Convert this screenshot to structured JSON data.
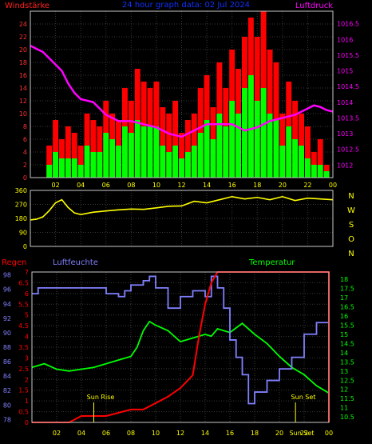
{
  "colors": {
    "background": "#000000",
    "wind_gust": "#ff0000",
    "wind_mean": "#00ff00",
    "pressure": "#ff00ff",
    "direction": "#ffff00",
    "rain": "#ff0000",
    "humidity": "#8080ff",
    "temperature": "#00ff00",
    "tick_left": "#ff3030",
    "tick_right_pressure": "#ff00ff",
    "tick_direction": "#ffff00",
    "tick_humidity": "#8080ff",
    "tick_temperature": "#00ff00",
    "tick_x": "#ffff00",
    "title": "#0000ff"
  },
  "chart_data": [
    {
      "type": "bar",
      "title": "24 hour graph data: 02 Jul 2024",
      "ylabel": "Windstärke",
      "ylabel_right": "Luftdruck",
      "x_ticks": [
        "02",
        "04",
        "06",
        "08",
        "10",
        "12",
        "14",
        "16",
        "18",
        "20",
        "22",
        "00"
      ],
      "y_ticks": [
        "0",
        "2",
        "4",
        "6",
        "8",
        "10",
        "12",
        "14",
        "16",
        "18",
        "20",
        "22",
        "24"
      ],
      "ylim": [
        0,
        26
      ],
      "y_right_ticks": [
        "1012",
        "1012.5",
        "1013",
        "1013.5",
        "1014",
        "1014.5",
        "1015",
        "1015.5",
        "1016",
        "1016.5"
      ],
      "y_right_lim": [
        1011.6,
        1016.9
      ],
      "series": [
        {
          "name": "gust",
          "kind": "bar",
          "x": [
            0.5,
            1,
            1.5,
            2,
            2.5,
            3,
            3.5,
            4,
            4.5,
            5,
            5.5,
            6,
            6.5,
            7,
            7.5,
            8,
            8.5,
            9,
            9.5,
            10,
            10.5,
            11,
            11.5,
            12,
            12.5,
            13,
            13.5,
            14,
            14.5,
            15,
            15.5,
            16,
            16.5,
            17,
            17.5,
            18,
            18.5,
            19,
            19.5,
            20,
            20.5,
            21,
            21.5,
            22,
            22.5,
            23,
            23.5
          ],
          "values": [
            0,
            0,
            5,
            9,
            6,
            8,
            7,
            5,
            10,
            9,
            8,
            12,
            10,
            9,
            14,
            12,
            17,
            15,
            14,
            15,
            11,
            10,
            12,
            7,
            9,
            10,
            14,
            16,
            11,
            18,
            14,
            20,
            17,
            22,
            25,
            22,
            26,
            20,
            18,
            10,
            15,
            12,
            10,
            8,
            4,
            6,
            2
          ]
        },
        {
          "name": "mean",
          "kind": "bar",
          "x": [
            0.5,
            1,
            1.5,
            2,
            2.5,
            3,
            3.5,
            4,
            4.5,
            5,
            5.5,
            6,
            6.5,
            7,
            7.5,
            8,
            8.5,
            9,
            9.5,
            10,
            10.5,
            11,
            11.5,
            12,
            12.5,
            13,
            13.5,
            14,
            14.5,
            15,
            15.5,
            16,
            16.5,
            17,
            17.5,
            18,
            18.5,
            19,
            19.5,
            20,
            20.5,
            21,
            21.5,
            22,
            22.5,
            23,
            23.5
          ],
          "values": [
            0,
            0,
            2,
            4,
            3,
            3,
            3,
            2,
            5,
            4,
            4,
            7,
            6,
            5,
            8,
            7,
            9,
            8,
            8,
            8,
            5,
            4,
            5,
            3,
            4,
            5,
            7,
            9,
            6,
            10,
            8,
            12,
            10,
            14,
            16,
            12,
            14,
            10,
            9,
            5,
            8,
            6,
            5,
            3,
            2,
            2,
            1
          ]
        },
        {
          "name": "pressure",
          "kind": "line",
          "axis": "right",
          "x": [
            0,
            0.5,
            1,
            1.5,
            2,
            2.5,
            3,
            3.5,
            4,
            5,
            6,
            7,
            8,
            9,
            10,
            11,
            12,
            13,
            14,
            15,
            16,
            17,
            18,
            19,
            20,
            21,
            22,
            22.5,
            23,
            23.5,
            24
          ],
          "values": [
            1015.8,
            1015.7,
            1015.6,
            1015.4,
            1015.2,
            1015.0,
            1014.6,
            1014.3,
            1014.1,
            1014.0,
            1013.6,
            1013.4,
            1013.4,
            1013.3,
            1013.2,
            1013.0,
            1012.9,
            1013.1,
            1013.3,
            1013.3,
            1013.3,
            1013.1,
            1013.2,
            1013.4,
            1013.5,
            1013.6,
            1013.8,
            1013.9,
            1013.85,
            1013.75,
            1013.7
          ]
        }
      ]
    },
    {
      "type": "line",
      "ylabel_right": [
        "N",
        "W",
        "S",
        "O",
        "N"
      ],
      "y_ticks": [
        "0",
        "90",
        "180",
        "270",
        "360"
      ],
      "ylim": [
        0,
        360
      ],
      "x": [
        0,
        0.5,
        1,
        1.5,
        2,
        2.5,
        3,
        3.5,
        4,
        5,
        6,
        7,
        8,
        9,
        10,
        11,
        12,
        13,
        14,
        15,
        16,
        17,
        18,
        19,
        20,
        21,
        22,
        23,
        24
      ],
      "values": [
        170,
        175,
        190,
        230,
        280,
        300,
        250,
        215,
        205,
        220,
        228,
        235,
        240,
        238,
        248,
        258,
        260,
        290,
        280,
        300,
        320,
        305,
        315,
        300,
        320,
        295,
        310,
        305,
        300
      ]
    },
    {
      "type": "line",
      "titles": [
        "Regen",
        "Luftfeuchte",
        "Temperatur"
      ],
      "x_ticks": [
        "02",
        "04",
        "06",
        "08",
        "10",
        "12",
        "14",
        "16",
        "18",
        "20",
        "22",
        "00"
      ],
      "rain_ticks": [
        "0",
        "0.5",
        "1",
        "1.5",
        "2",
        "2.5",
        "3",
        "3.5",
        "4",
        "4.5",
        "5",
        "5.5",
        "6",
        "6.5",
        "7"
      ],
      "rain_lim": [
        0,
        7
      ],
      "humidity_ticks": [
        "78",
        "80",
        "82",
        "84",
        "86",
        "88",
        "90",
        "92",
        "94",
        "96",
        "98"
      ],
      "humidity_lim": [
        77.6,
        98.4
      ],
      "temperature_ticks": [
        "10.5",
        "11",
        "11.5",
        "12",
        "12.5",
        "13",
        "13.5",
        "14",
        "14.5",
        "15",
        "15.5",
        "16",
        "16.5",
        "17",
        "17.5",
        "18"
      ],
      "temperature_lim": [
        10.2,
        18.4
      ],
      "annotations": [
        "Sun Rise",
        "Sun Set",
        "Sun Set"
      ],
      "series": [
        {
          "name": "Regen",
          "x": [
            0,
            3,
            4,
            6,
            8,
            9,
            10,
            11,
            12,
            13,
            13.5,
            14,
            14.5,
            15,
            24
          ],
          "values": [
            0,
            0,
            0.3,
            0.3,
            0.6,
            0.6,
            0.9,
            1.2,
            1.6,
            2.2,
            4.0,
            5.5,
            6.5,
            7.0,
            7.0
          ]
        },
        {
          "name": "Luftfeuchte",
          "x": [
            0,
            0.5,
            1,
            2,
            3,
            4,
            5,
            6,
            7,
            7.5,
            8,
            9,
            9.5,
            10,
            11,
            12,
            13,
            14,
            14.5,
            15,
            15.5,
            16,
            16.5,
            17,
            17.5,
            18,
            19,
            20,
            21,
            22,
            23,
            24
          ],
          "values": [
            95.4,
            96.2,
            96.2,
            96.2,
            96.2,
            96.2,
            96.2,
            95.4,
            95.0,
            95.8,
            96.6,
            97.2,
            97.8,
            96.2,
            93.4,
            95.0,
            95.8,
            95.0,
            97.8,
            96.2,
            93.4,
            89.0,
            86.6,
            84.2,
            80.2,
            81.8,
            83.4,
            85.0,
            86.6,
            89.8,
            91.4,
            93.0
          ]
        },
        {
          "name": "Temperatur",
          "x": [
            0,
            1,
            2,
            3,
            4,
            5,
            6,
            7,
            8,
            8.5,
            9,
            9.5,
            10,
            11,
            12,
            13,
            14,
            14.5,
            15,
            16,
            17,
            18,
            19,
            20,
            21,
            22,
            23,
            24
          ],
          "values": [
            13.2,
            13.4,
            13.1,
            13.0,
            13.1,
            13.2,
            13.4,
            13.6,
            13.8,
            14.3,
            15.2,
            15.7,
            15.5,
            15.2,
            14.6,
            14.8,
            15.0,
            14.9,
            15.3,
            15.1,
            15.6,
            15.0,
            14.5,
            13.8,
            13.2,
            12.8,
            12.2,
            11.8
          ]
        }
      ]
    }
  ]
}
